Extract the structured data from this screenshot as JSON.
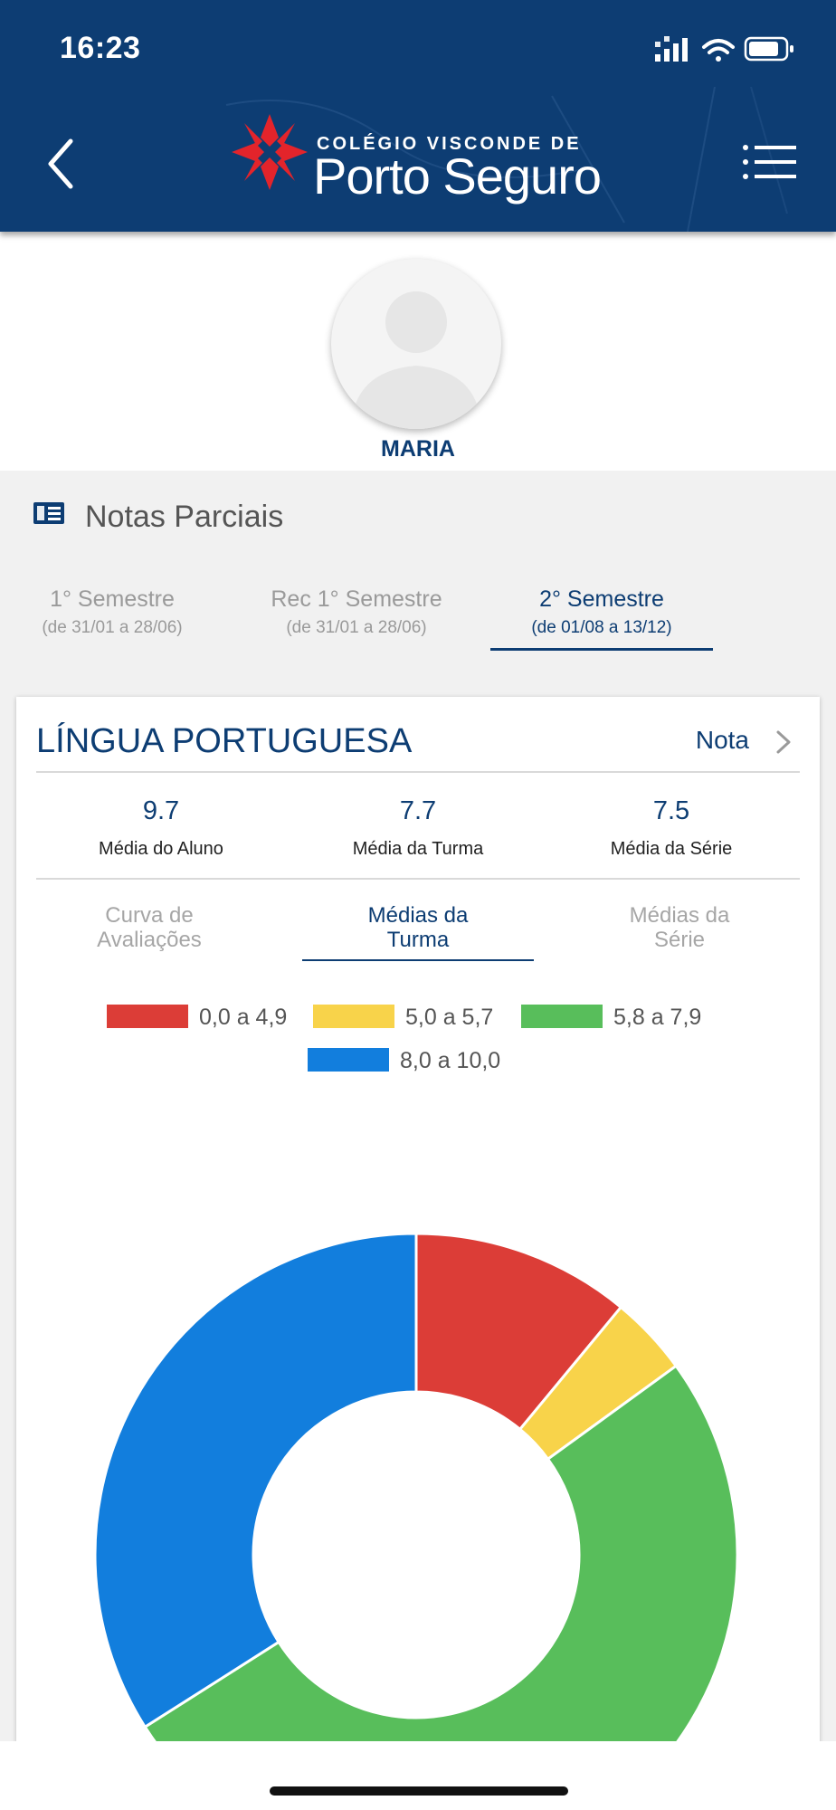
{
  "status_bar": {
    "time": "16:23"
  },
  "header": {
    "logo_small_text": "COLÉGIO VISCONDE DE",
    "logo_large_text": "Porto Seguro",
    "back_icon": "chevron-left-icon",
    "menu_icon": "hamburger-menu-icon",
    "brand_color": "#0d3d73",
    "logo_accent_color": "#e3242b"
  },
  "profile": {
    "name": "MARIA"
  },
  "section": {
    "title": "Notas Parciais",
    "icon": "book-icon",
    "tabs": [
      {
        "label": "1° Semestre",
        "dates": "(de 31/01 a 28/06)"
      },
      {
        "label": "Rec 1° Semestre",
        "dates": "(de 31/01 a 28/06)"
      },
      {
        "label": "2° Semestre",
        "dates": "(de 01/08 a 13/12)"
      }
    ],
    "selected_tab": "2° Semestre"
  },
  "card": {
    "subject": "LÍNGUA PORTUGUESA",
    "nota_label": "Nota",
    "stats": [
      {
        "value": "9.7",
        "label": "Média do Aluno"
      },
      {
        "value": "7.7",
        "label": "Média da Turma"
      },
      {
        "value": "7.5",
        "label": "Média da Série"
      }
    ],
    "subtabs": [
      {
        "line1": "Curva de",
        "line2": "Avaliações"
      },
      {
        "line1": "Médias da",
        "line2": "Turma"
      },
      {
        "line1": "Médias da",
        "line2": "Série"
      }
    ],
    "selected_subtab": "Médias da Turma"
  },
  "chart_data": {
    "type": "pie",
    "donut": true,
    "legend_placement": "top",
    "categories": [
      "0,0 a 4,9",
      "5,0 a 5,7",
      "5,8 a 7,9",
      "8,0 a 10,0"
    ],
    "values": [
      11,
      4,
      51,
      34
    ],
    "value_unit": "percent of class (estimated)",
    "colors": [
      "#dc3d37",
      "#f8d34a",
      "#58be5b",
      "#127edd"
    ]
  }
}
